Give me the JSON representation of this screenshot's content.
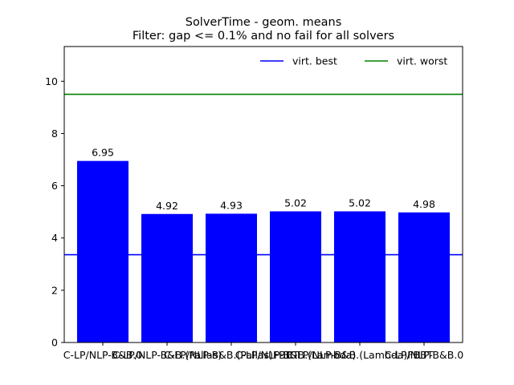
{
  "chart_data": {
    "type": "bar",
    "title_line1": "SolverTime - geom. means",
    "title_line2": "Filter: gap <= 0.1% and no fail for all solvers",
    "categories": [
      "C-LP/NLP-B&B.0",
      "C-LP/NLP-B&B.(Pallas)",
      "C-LP/NLP-B&B.(Pallas)FBBT",
      "C-LP/NLP-B&B.(Lambda)",
      "C-LP/NLP-B&B.(Lambda)FBBT",
      "C-LP/NLP-B&B.0"
    ],
    "values": [
      6.95,
      4.92,
      4.93,
      5.02,
      5.02,
      4.98
    ],
    "data_labels": [
      "6.95",
      "4.92",
      "4.93",
      "5.02",
      "5.02",
      "4.98"
    ],
    "ylim": [
      0,
      11.33
    ],
    "yticks": [
      0,
      2,
      4,
      6,
      8,
      10
    ],
    "ytick_labels": [
      "0",
      "2",
      "4",
      "6",
      "8",
      "10"
    ],
    "bar_color": "#0000ff",
    "reference_lines": [
      {
        "name": "virt. best",
        "value": 3.36,
        "color": "#0000ff"
      },
      {
        "name": "virt. worst",
        "value": 9.5,
        "color": "#008000"
      }
    ],
    "legend": {
      "placement": "top-right",
      "frame": false
    },
    "grid": false,
    "xlabel": "",
    "ylabel": ""
  }
}
